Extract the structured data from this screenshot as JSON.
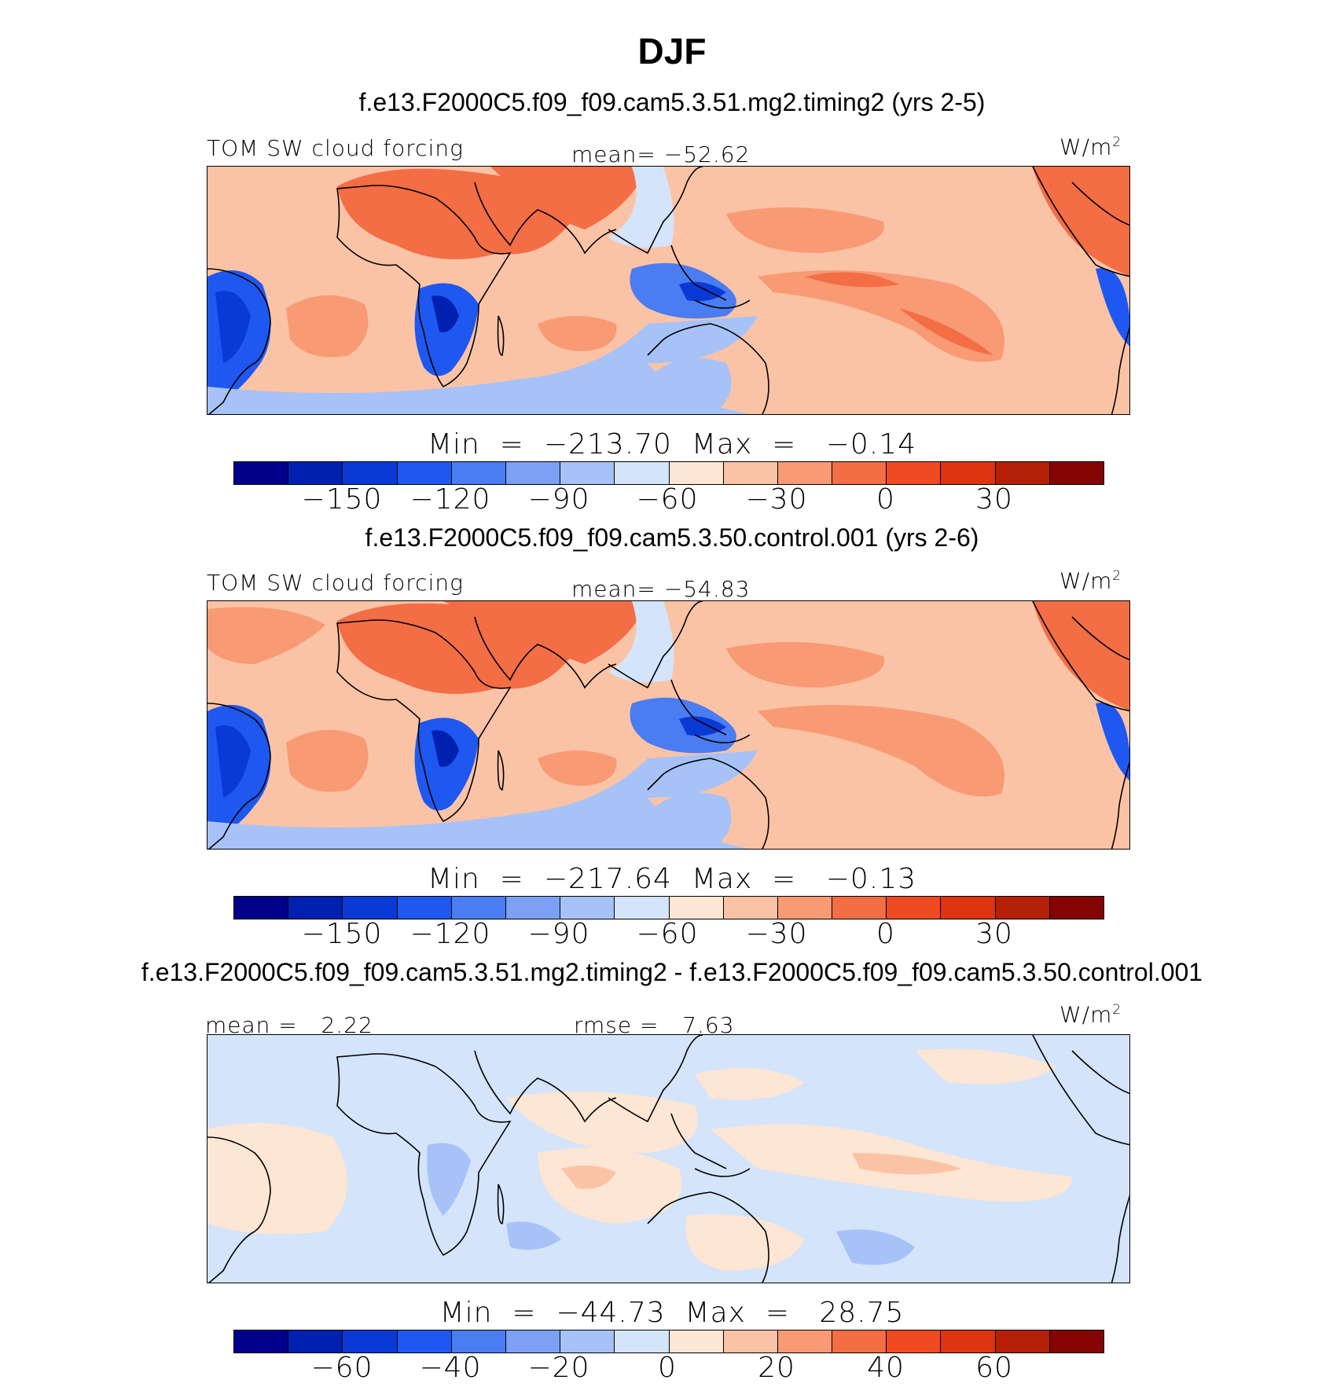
{
  "title": "DJF",
  "palette": [
    "#00008a",
    "#0020b0",
    "#0a3ad6",
    "#1e58f0",
    "#4a7cf2",
    "#7ba0f4",
    "#a7c2f7",
    "#d4e4fb",
    "#fde6d4",
    "#fbc3a6",
    "#f89a74",
    "#f36d45",
    "#f04a22",
    "#de3410",
    "#b52009",
    "#840403"
  ],
  "panels": [
    {
      "case_title": "f.e13.F2000C5.f09_f09.cam5.3.51.mg2.timing2 (yrs 2-5)",
      "left_label": "TOM SW cloud forcing",
      "center_label": "mean= −52.62",
      "units_base": "W/m",
      "units_exp": "2",
      "min_label": "Min",
      "min_value": "−213.70",
      "max_label": "Max",
      "max_value": "−0.14",
      "eq": "=",
      "ticks": [
        "−150",
        "−120",
        "−90",
        "−60",
        "−30",
        "0",
        "30"
      ]
    },
    {
      "case_title": "f.e13.F2000C5.f09_f09.cam5.3.50.control.001 (yrs 2-6)",
      "left_label": "TOM SW cloud forcing",
      "center_label": "mean= −54.83",
      "units_base": "W/m",
      "units_exp": "2",
      "min_label": "Min",
      "min_value": "−217.64",
      "max_label": "Max",
      "max_value": "−0.13",
      "eq": "=",
      "ticks": [
        "−150",
        "−120",
        "−90",
        "−60",
        "−30",
        "0",
        "30"
      ]
    },
    {
      "case_title": "f.e13.F2000C5.f09_f09.cam5.3.51.mg2.timing2 - f.e13.F2000C5.f09_f09.cam5.3.50.control.001",
      "left_label": "mean =   2.22",
      "center_label": "rmse =   7.63",
      "units_base": "W/m",
      "units_exp": "2",
      "min_label": "Min",
      "min_value": "−44.73",
      "max_label": "Max",
      "max_value": "28.75",
      "eq": "=",
      "ticks": [
        "−60",
        "−40",
        "−20",
        "0",
        "20",
        "40",
        "60"
      ]
    }
  ]
}
